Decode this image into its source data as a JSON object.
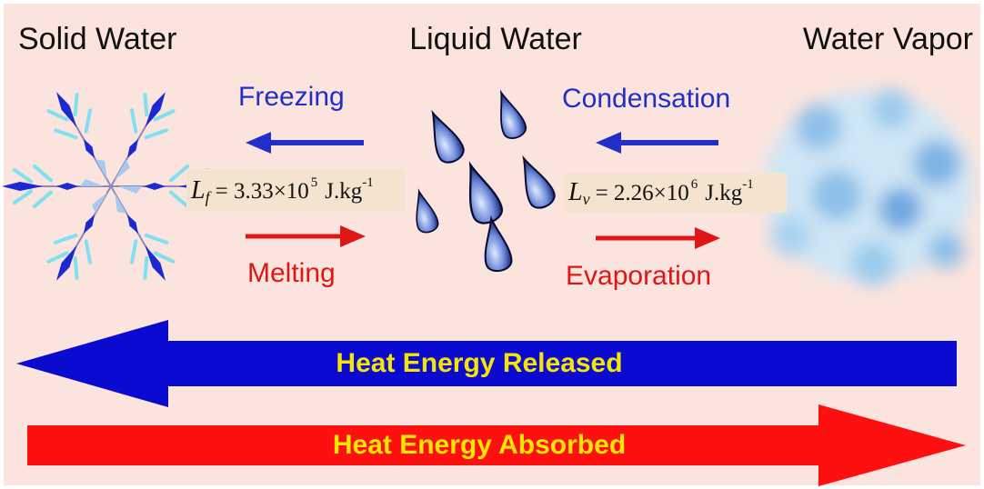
{
  "titles": {
    "solid": "Solid Water",
    "liquid": "Liquid Water",
    "vapor": "Water Vapor"
  },
  "processes": {
    "freezing": "Freezing",
    "condensation": "Condensation",
    "melting": "Melting",
    "evaporation": "Evaporation"
  },
  "formulas": [
    {
      "symbol": "L",
      "subscript": "f",
      "body": "= 3.33×10",
      "exponent": "5",
      "unit": "J.kg",
      "unit_exponent": "-1"
    },
    {
      "symbol": "L",
      "subscript": "v",
      "body": "= 2.26×10",
      "exponent": "6",
      "unit": "J.kg",
      "unit_exponent": "-1"
    }
  ],
  "bands": {
    "released": "Heat Energy Released",
    "absorbed": "Heat Energy Absorbed"
  }
}
